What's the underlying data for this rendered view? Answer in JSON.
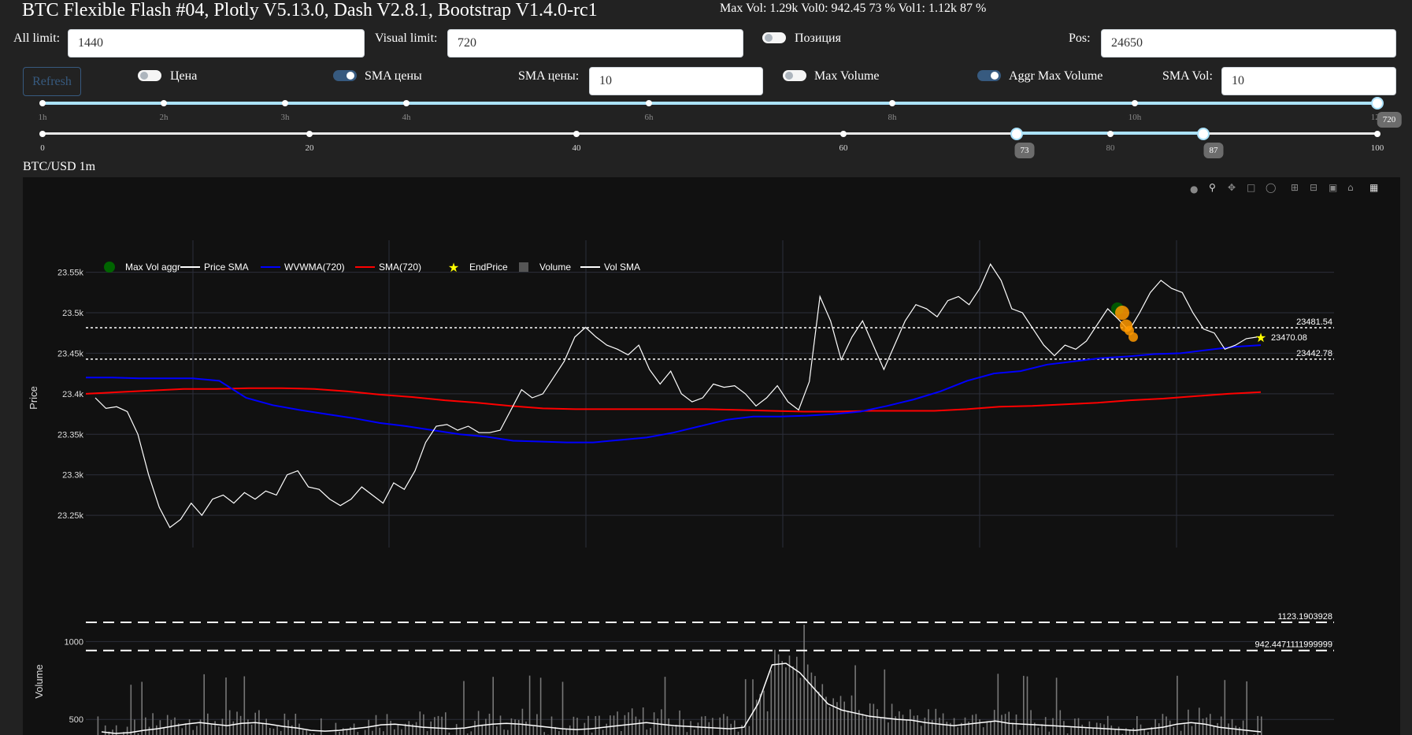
{
  "header": {
    "title": "BTC Flexible Flash #04, Plotly V5.13.0, Dash V2.8.1, Bootstrap V1.4.0-rc1",
    "stats": "Max Vol: 1.29k Vol0: 942.45 73 % Vol1: 1.12k 87 %"
  },
  "controls": {
    "all_limit_label": "All limit:",
    "all_limit_value": "1440",
    "visual_limit_label": "Visual limit:",
    "visual_limit_value": "720",
    "position_label": "Позиция",
    "position_on": false,
    "pos_label": "Pos:",
    "pos_value": "24650",
    "refresh_label": "Refresh",
    "price_label": "Цена",
    "price_on": false,
    "sma_price_toggle_label": "SMA цены",
    "sma_price_on": true,
    "sma_price_label": "SMA цены:",
    "sma_price_value": "10",
    "max_volume_label": "Max Volume",
    "max_volume_on": false,
    "aggr_max_volume_label": "Aggr Max Volume",
    "aggr_max_volume_on": true,
    "sma_vol_label": "SMA Vol:",
    "sma_vol_value": "10"
  },
  "slider_time": {
    "marks": [
      "1h",
      "2h",
      "3h",
      "4h",
      "6h",
      "8h",
      "10h",
      "12h"
    ],
    "value": 720,
    "value_label": "720"
  },
  "slider_range": {
    "marks": [
      "0",
      "20",
      "40",
      "60",
      "80",
      "100"
    ],
    "low": 73,
    "high": 87,
    "low_label": "73",
    "high_label": "87"
  },
  "chart": {
    "title": "BTC/USD 1m",
    "modebar_icons": [
      "camera-icon",
      "zoom-icon",
      "pan-icon",
      "box-select-icon",
      "lasso-icon",
      "zoom-in-icon",
      "zoom-out-icon",
      "autoscale-icon",
      "reset-axes-icon",
      "plotly-logo-icon"
    ]
  },
  "chart_data": [
    {
      "type": "line",
      "ylabel": "Price",
      "y_ticks": [
        "23.55k",
        "23.5k",
        "23.45k",
        "23.4k",
        "23.35k",
        "23.3k",
        "23.25k"
      ],
      "ylim": [
        23220,
        23570
      ],
      "legend": [
        "Max Vol aggr",
        "Price SMA",
        "WVWMA(720)",
        "SMA(720)",
        "EndPrice",
        "Volume",
        "Vol SMA"
      ],
      "colors": {
        "price_sma": "#ffffff",
        "wvwma": "#0000ff",
        "sma720": "#ff0000",
        "maxvol": "#006400",
        "endprice": "#ffff00",
        "orange": "#ff9900"
      },
      "hlines": [
        {
          "value": 23481.54,
          "label": "23481.54"
        },
        {
          "value": 23442.78,
          "label": "23442.78"
        }
      ],
      "end_price": {
        "value": 23470.08,
        "label": "23470.08"
      },
      "series": [
        {
          "name": "Price SMA",
          "values": [
            23395,
            23382,
            23384,
            23378,
            23350,
            23300,
            23260,
            23235,
            23245,
            23265,
            23250,
            23270,
            23275,
            23265,
            23278,
            23270,
            23280,
            23275,
            23300,
            23305,
            23285,
            23282,
            23270,
            23262,
            23270,
            23285,
            23275,
            23265,
            23290,
            23282,
            23305,
            23340,
            23360,
            23362,
            23355,
            23360,
            23352,
            23352,
            23355,
            23380,
            23405,
            23395,
            23400,
            23420,
            23440,
            23470,
            23482,
            23470,
            23460,
            23455,
            23448,
            23460,
            23430,
            23412,
            23428,
            23400,
            23390,
            23395,
            23412,
            23408,
            23410,
            23400,
            23385,
            23395,
            23410,
            23390,
            23380,
            23415,
            23520,
            23490,
            23442,
            23470,
            23490,
            23460,
            23430,
            23460,
            23490,
            23510,
            23505,
            23495,
            23515,
            23520,
            23510,
            23530,
            23560,
            23540,
            23505,
            23500,
            23480,
            23460,
            23447,
            23460,
            23455,
            23465,
            23485,
            23505,
            23492,
            23478,
            23500,
            23525,
            23540,
            23530,
            23525,
            23500,
            23480,
            23475,
            23455,
            23460,
            23468,
            23470
          ]
        },
        {
          "name": "WVWMA(720)",
          "values": [
            23420,
            23420,
            23419,
            23419,
            23419,
            23416,
            23395,
            23386,
            23380,
            23375,
            23370,
            23364,
            23360,
            23355,
            23350,
            23347,
            23342,
            23341,
            23340,
            23340,
            23343,
            23346,
            23352,
            23360,
            23368,
            23372,
            23372,
            23373,
            23375,
            23378,
            23385,
            23393,
            23403,
            23416,
            23425,
            23428,
            23436,
            23440,
            23444,
            23446,
            23449,
            23450,
            23454,
            23458,
            23460
          ]
        },
        {
          "name": "SMA(720)",
          "values": [
            23400,
            23402,
            23404,
            23406,
            23406,
            23407,
            23407,
            23406,
            23403,
            23399,
            23396,
            23392,
            23389,
            23385,
            23382,
            23381,
            23381,
            23381,
            23381,
            23381,
            23380,
            23379,
            23378,
            23378,
            23379,
            23379,
            23379,
            23381,
            23384,
            23385,
            23387,
            23389,
            23392,
            23394,
            23397,
            23400,
            23402
          ]
        },
        {
          "name": "Max Vol aggr",
          "points": [
            [
              23505,
              "#006400"
            ],
            [
              23500,
              "#ff9900"
            ],
            [
              23484,
              "#ff9900"
            ],
            [
              23478,
              "#ff9900"
            ],
            [
              23470,
              "#ff9900"
            ]
          ]
        }
      ]
    },
    {
      "type": "bar",
      "ylabel": "Volume",
      "y_ticks": [
        "1000",
        "500"
      ],
      "ylim": [
        400,
        1300
      ],
      "hlines": [
        {
          "value": 1123.1903928,
          "label": "1123.1903928"
        },
        {
          "value": 942.4471111999999,
          "label": "942.4471111999999"
        }
      ],
      "series": [
        {
          "name": "Vol SMA",
          "values": [
            420,
            410,
            415,
            430,
            440,
            455,
            470,
            480,
            470,
            460,
            475,
            480,
            470,
            455,
            445,
            430,
            425,
            430,
            440,
            450,
            465,
            470,
            460,
            450,
            445,
            440,
            445,
            460,
            470,
            475,
            470,
            460,
            450,
            440,
            435,
            440,
            450,
            460,
            470,
            480,
            470,
            460,
            455,
            450,
            445,
            440,
            450,
            600,
            850,
            860,
            800,
            700,
            600,
            560,
            540,
            520,
            510,
            500,
            495,
            480,
            470,
            460,
            470,
            480,
            490,
            475,
            470,
            465,
            460,
            455,
            450,
            445,
            440,
            435,
            430,
            440,
            450,
            470,
            480,
            470,
            450,
            440,
            430,
            420
          ]
        }
      ]
    }
  ]
}
